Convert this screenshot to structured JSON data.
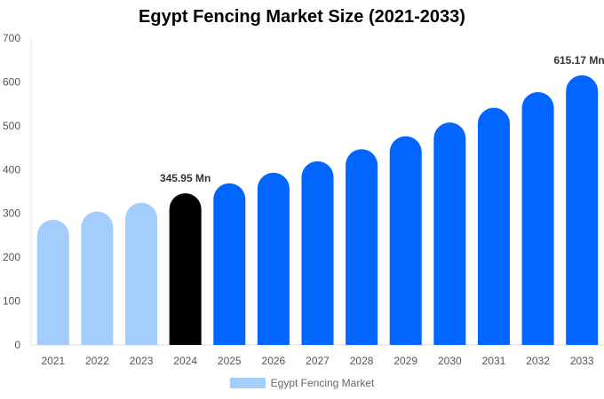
{
  "chart_data": {
    "type": "bar",
    "title": "Egypt Fencing Market Size (2021-2033)",
    "categories": [
      "2021",
      "2022",
      "2023",
      "2024",
      "2025",
      "2026",
      "2027",
      "2028",
      "2029",
      "2030",
      "2031",
      "2032",
      "2033"
    ],
    "series": [
      {
        "name": "Egypt Fencing Market",
        "values": [
          285.6,
          304.4,
          324.5,
          345.95,
          368.8,
          393.1,
          419.0,
          446.7,
          476.2,
          507.6,
          541.1,
          576.8,
          615.17
        ]
      }
    ],
    "data_labels": {
      "3": "345.95 Mn",
      "12": "615.17 Mn"
    },
    "ylim": [
      0,
      700
    ],
    "yticks": [
      0,
      100,
      200,
      300,
      400,
      500,
      600,
      700
    ],
    "grid": false,
    "legend": "bottom",
    "colors": {
      "historical": "#a3cdfd",
      "base_year": "#000000",
      "forecast": "#0066ff"
    },
    "bar_color_groups": [
      "historical",
      "historical",
      "historical",
      "base_year",
      "forecast",
      "forecast",
      "forecast",
      "forecast",
      "forecast",
      "forecast",
      "forecast",
      "forecast",
      "forecast"
    ]
  }
}
